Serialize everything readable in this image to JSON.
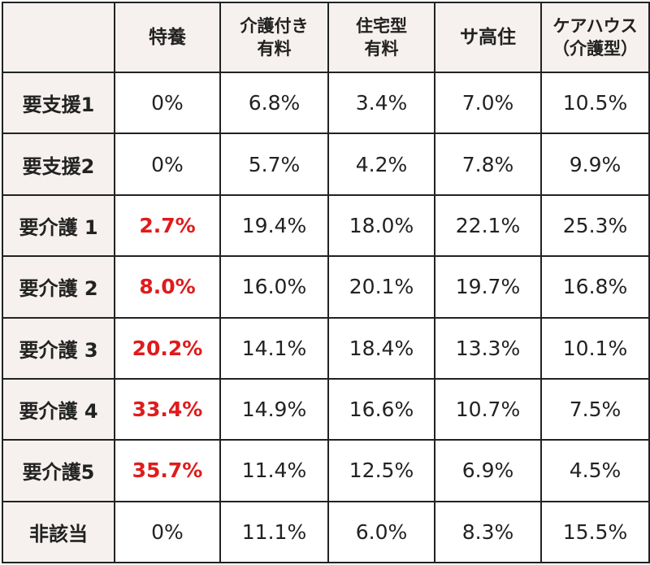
{
  "chart_data": {
    "type": "table",
    "columns": [
      {
        "lines": [
          "特養"
        ]
      },
      {
        "lines": [
          "介護付き",
          "有料"
        ]
      },
      {
        "lines": [
          "住宅型",
          "有料"
        ]
      },
      {
        "lines": [
          "サ高住"
        ]
      },
      {
        "lines": [
          "ケアハウス",
          "（介護型）"
        ]
      }
    ],
    "highlight_color": "#e01b1b",
    "rows": [
      {
        "label": "要支援1",
        "values": [
          "0%",
          "6.8%",
          "3.4%",
          "7.0%",
          "10.5%"
        ],
        "highlight": [
          false,
          false,
          false,
          false,
          false
        ]
      },
      {
        "label": "要支援2",
        "values": [
          "0%",
          "5.7%",
          "4.2%",
          "7.8%",
          "9.9%"
        ],
        "highlight": [
          false,
          false,
          false,
          false,
          false
        ]
      },
      {
        "label": "要介護 1",
        "values": [
          "2.7%",
          "19.4%",
          "18.0%",
          "22.1%",
          "25.3%"
        ],
        "highlight": [
          true,
          false,
          false,
          false,
          false
        ]
      },
      {
        "label": "要介護 2",
        "values": [
          "8.0%",
          "16.0%",
          "20.1%",
          "19.7%",
          "16.8%"
        ],
        "highlight": [
          true,
          false,
          false,
          false,
          false
        ]
      },
      {
        "label": "要介護 3",
        "values": [
          "20.2%",
          "14.1%",
          "18.4%",
          "13.3%",
          "10.1%"
        ],
        "highlight": [
          true,
          false,
          false,
          false,
          false
        ]
      },
      {
        "label": "要介護 4",
        "values": [
          "33.4%",
          "14.9%",
          "16.6%",
          "10.7%",
          "7.5%"
        ],
        "highlight": [
          true,
          false,
          false,
          false,
          false
        ]
      },
      {
        "label": "要介護5",
        "values": [
          "35.7%",
          "11.4%",
          "12.5%",
          "6.9%",
          "4.5%"
        ],
        "highlight": [
          true,
          false,
          false,
          false,
          false
        ]
      },
      {
        "label": "非該当",
        "values": [
          "0%",
          "11.1%",
          "6.0%",
          "8.3%",
          "15.5%"
        ],
        "highlight": [
          false,
          false,
          false,
          false,
          false
        ]
      }
    ]
  }
}
